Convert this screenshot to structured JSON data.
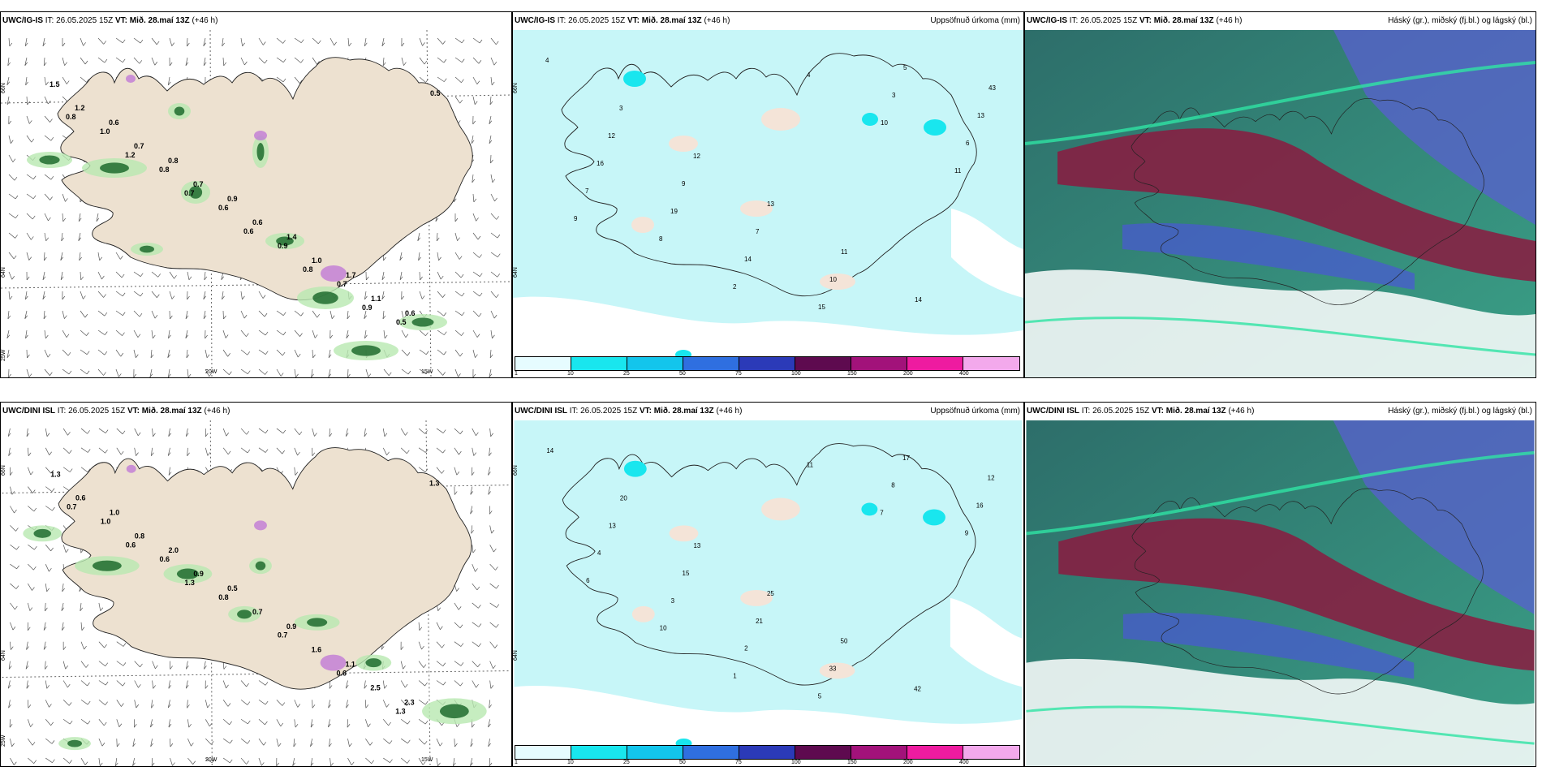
{
  "panels": {
    "p1": {
      "model": "UWC/IG-IS",
      "init": "26.05.2025 15Z",
      "valid": "Mið. 28.maí 13Z",
      "lead": "(+46 h)",
      "title": ""
    },
    "p2": {
      "model": "UWC/IG-IS",
      "init": "26.05.2025 15Z",
      "valid": "Mið. 28.maí 13Z",
      "lead": "(+46 h)",
      "title": "Uppsöfnuð úrkoma (mm)"
    },
    "p3": {
      "model": "UWC/IG-IS",
      "init": "26.05.2025 15Z",
      "valid": "Mið. 28.maí 13Z",
      "lead": "(+46 h)",
      "title": "Háský (gr.), miðský (fj.bl.) og lágský (bl.)"
    },
    "p4": {
      "model": "UWC/DINI ISL",
      "init": "26.05.2025 15Z",
      "valid": "Mið. 28.maí 13Z",
      "lead": "(+46 h)",
      "title": ""
    },
    "p5": {
      "model": "UWC/DINI ISL",
      "init": "26.05.2025 15Z",
      "valid": "Mið. 28.maí 13Z",
      "lead": "(+46 h)",
      "title": "Uppsöfnuð úrkoma (mm)"
    },
    "p6": {
      "model": "UWC/DINI ISL",
      "init": "26.05.2025 15Z",
      "valid": "Mið. 28.maí 13Z",
      "lead": "(+46 h)",
      "title": "Háský (gr.), miðský (fj.bl.) og lágský (bl.)"
    }
  },
  "labels": {
    "it": "IT:",
    "vt": "VT:"
  },
  "axes": {
    "lat66": "66N",
    "lat64": "64N",
    "lon25": "25W",
    "lon20": "20W",
    "lon15": "15W"
  },
  "colorbar": {
    "ticks": [
      "1",
      "10",
      "25",
      "50",
      "75",
      "100",
      "150",
      "200",
      "400"
    ],
    "colors": [
      "#e6fcff",
      "#19e6ee",
      "#13c5ec",
      "#2f6fe0",
      "#2b3ab8",
      "#5e0a4f",
      "#a2127a",
      "#ee1ba0",
      "#f3a9ec"
    ]
  },
  "values": {
    "p1": [
      "1.5",
      "0.6",
      "0.8",
      "0.9",
      "1.4",
      "1.7",
      "0.6",
      "1.2",
      "0.7",
      "0.7",
      "0.6",
      "1.0",
      "1.1",
      "0.5",
      "1.0",
      "0.8",
      "0.6",
      "0.9",
      "0.7",
      "0.5",
      "0.8",
      "1.2",
      "0.7",
      "0.6",
      "0.8",
      "0.9"
    ],
    "p2": [
      "4",
      "3",
      "12",
      "13",
      "11",
      "14",
      "43",
      "12",
      "9",
      "7",
      "10",
      "5",
      "13",
      "16",
      "19",
      "14",
      "15",
      "3",
      "6",
      "7",
      "8",
      "2",
      "4",
      "10",
      "11",
      "9"
    ],
    "p4": [
      "1.3",
      "1.0",
      "2.0",
      "0.5",
      "0.9",
      "1.1",
      "2.3",
      "0.6",
      "0.8",
      "0.9",
      "0.7",
      "1.6",
      "2.5",
      "1.3",
      "1.0",
      "0.6",
      "0.8",
      "0.7",
      "0.6",
      "1.3",
      "0.7",
      "0.6",
      "1.3"
    ],
    "p5": [
      "14",
      "20",
      "13",
      "25",
      "50",
      "42",
      "12",
      "13",
      "15",
      "21",
      "33",
      "17",
      "16",
      "4",
      "3",
      "2",
      "5",
      "8",
      "9",
      "6",
      "10",
      "1",
      "11",
      "7"
    ]
  }
}
